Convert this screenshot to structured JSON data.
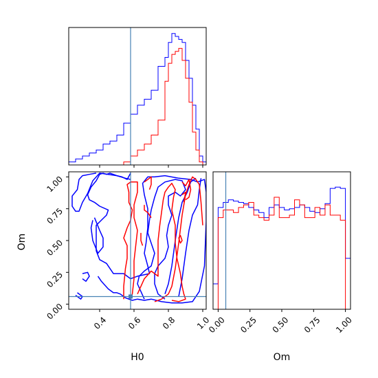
{
  "chart_data": {
    "type": "corner",
    "title": "",
    "parameters": [
      "H0",
      "Om"
    ],
    "truth": {
      "H0": 0.58,
      "Om": 0.06
    },
    "truth_color": "#4682b4",
    "series": [
      {
        "color": "#0000ff"
      },
      {
        "color": "#ff0000"
      }
    ],
    "h0_axis": {
      "range": [
        0.22,
        1.02
      ],
      "ticks": [
        0.4,
        0.6,
        0.8,
        1.0
      ],
      "tick_labels": [
        "0.4",
        "0.6",
        "0.8",
        "1.0"
      ],
      "label": "H0"
    },
    "om_axis": {
      "range": [
        -0.04,
        1.04
      ],
      "ticks": [
        0.0,
        0.25,
        0.5,
        0.75,
        1.0
      ],
      "tick_labels": [
        "0.00",
        "0.25",
        "0.50",
        "0.75",
        "1.00"
      ],
      "label": "Om"
    },
    "hist_h0": {
      "bin_edges": [
        0.22,
        0.26,
        0.3,
        0.34,
        0.38,
        0.42,
        0.46,
        0.5,
        0.54,
        0.58,
        0.62,
        0.66,
        0.7,
        0.74,
        0.78,
        0.8,
        0.82,
        0.84,
        0.86,
        0.88,
        0.9,
        0.92,
        0.94,
        0.96,
        0.98,
        1.0,
        1.02
      ],
      "blue": [
        2,
        4,
        6,
        8,
        10,
        14,
        16,
        20,
        28,
        34,
        40,
        44,
        50,
        66,
        72,
        82,
        88,
        86,
        84,
        82,
        70,
        58,
        40,
        24,
        6,
        2
      ],
      "red": [
        0,
        0,
        0,
        0,
        0,
        0,
        0,
        0,
        2,
        6,
        10,
        14,
        20,
        30,
        56,
        68,
        74,
        76,
        78,
        70,
        58,
        42,
        22,
        10,
        2,
        0
      ],
      "ymax": 92
    },
    "hist_om": {
      "bin_edges": [
        -0.04,
        0.0,
        0.04,
        0.08,
        0.12,
        0.16,
        0.2,
        0.24,
        0.28,
        0.32,
        0.36,
        0.4,
        0.44,
        0.48,
        0.52,
        0.56,
        0.6,
        0.64,
        0.68,
        0.72,
        0.76,
        0.8,
        0.84,
        0.88,
        0.92,
        0.96,
        1.0,
        1.04
      ],
      "blue": [
        0.2,
        0.8,
        0.84,
        0.86,
        0.85,
        0.84,
        0.83,
        0.8,
        0.78,
        0.76,
        0.72,
        0.8,
        0.82,
        0.8,
        0.78,
        0.79,
        0.8,
        0.82,
        0.8,
        0.77,
        0.76,
        0.79,
        0.83,
        0.95,
        0.96,
        0.95,
        0.4
      ],
      "red": [
        0.0,
        0.72,
        0.78,
        0.78,
        0.76,
        0.8,
        0.82,
        0.84,
        0.74,
        0.72,
        0.7,
        0.74,
        0.88,
        0.72,
        0.72,
        0.74,
        0.86,
        0.82,
        0.72,
        0.72,
        0.8,
        0.74,
        0.82,
        0.74,
        0.74,
        0.7,
        0.0
      ],
      "ymax": 1.08
    },
    "contours": [
      {
        "series": 0,
        "points": [
          [
            0.26,
            0.07
          ],
          [
            0.29,
            0.04
          ],
          [
            0.3,
            0.06
          ],
          [
            0.27,
            0.09
          ]
        ]
      },
      {
        "series": 0,
        "points": [
          [
            0.39,
            0.22
          ],
          [
            0.41,
            0.18
          ],
          [
            0.45,
            0.12
          ],
          [
            0.48,
            0.09
          ],
          [
            0.5,
            0.09
          ],
          [
            0.52,
            0.08
          ],
          [
            0.55,
            0.05
          ],
          [
            0.59,
            0.03
          ],
          [
            0.62,
            0.04
          ],
          [
            0.66,
            0.03
          ],
          [
            0.7,
            0.04
          ],
          [
            0.76,
            0.02
          ],
          [
            0.82,
            0.01
          ],
          [
            0.88,
            0.01
          ],
          [
            0.94,
            0.02
          ],
          [
            0.98,
            0.1
          ],
          [
            1.01,
            0.3
          ],
          [
            1.02,
            0.65
          ],
          [
            1.02,
            0.88
          ],
          [
            1.01,
            0.98
          ],
          [
            0.97,
            0.96
          ],
          [
            0.93,
            0.98
          ],
          [
            0.86,
            0.99
          ],
          [
            0.78,
            1.01
          ],
          [
            0.72,
            1.0
          ],
          [
            0.68,
            1.0
          ],
          [
            0.65,
            0.95
          ],
          [
            0.66,
            0.86
          ],
          [
            0.68,
            0.75
          ],
          [
            0.68,
            0.6
          ],
          [
            0.67,
            0.48
          ],
          [
            0.66,
            0.4
          ],
          [
            0.68,
            0.3
          ],
          [
            0.69,
            0.24
          ],
          [
            0.62,
            0.22
          ],
          [
            0.58,
            0.2
          ],
          [
            0.54,
            0.24
          ],
          [
            0.48,
            0.24
          ],
          [
            0.46,
            0.28
          ],
          [
            0.44,
            0.32
          ],
          [
            0.4,
            0.35
          ],
          [
            0.38,
            0.42
          ],
          [
            0.38,
            0.55
          ],
          [
            0.38,
            0.62
          ],
          [
            0.41,
            0.66
          ],
          [
            0.44,
            0.7
          ],
          [
            0.45,
            0.74
          ],
          [
            0.4,
            0.77
          ],
          [
            0.37,
            0.8
          ],
          [
            0.34,
            0.82
          ],
          [
            0.33,
            0.86
          ],
          [
            0.35,
            0.92
          ],
          [
            0.38,
            0.97
          ],
          [
            0.4,
            1.02
          ],
          [
            0.42,
            1.03
          ],
          [
            0.44,
            1.02
          ],
          [
            0.46,
            1.03
          ],
          [
            0.5,
            1.01
          ],
          [
            0.53,
            1.0
          ],
          [
            0.56,
            0.98
          ],
          [
            0.58,
            1.03
          ]
        ]
      },
      {
        "series": 0,
        "points": [
          [
            0.58,
            0.98
          ],
          [
            0.55,
            0.99
          ],
          [
            0.5,
            1.01
          ],
          [
            0.45,
            1.02
          ],
          [
            0.4,
            1.03
          ],
          [
            0.36,
            0.97
          ],
          [
            0.33,
            0.87
          ],
          [
            0.3,
            0.8
          ],
          [
            0.28,
            0.73
          ],
          [
            0.26,
            0.73
          ],
          [
            0.24,
            0.77
          ],
          [
            0.24,
            0.85
          ],
          [
            0.27,
            0.9
          ],
          [
            0.28,
            0.98
          ],
          [
            0.3,
            1.01
          ],
          [
            0.34,
            1.02
          ],
          [
            0.38,
            1.03
          ]
        ]
      },
      {
        "series": 0,
        "points": [
          [
            0.3,
            0.2
          ],
          [
            0.32,
            0.18
          ],
          [
            0.34,
            0.22
          ],
          [
            0.33,
            0.25
          ],
          [
            0.3,
            0.24
          ]
        ]
      },
      {
        "series": 0,
        "points": [
          [
            0.37,
            0.68
          ],
          [
            0.4,
            0.58
          ],
          [
            0.42,
            0.52
          ],
          [
            0.42,
            0.45
          ],
          [
            0.39,
            0.4
          ],
          [
            0.36,
            0.5
          ],
          [
            0.35,
            0.6
          ],
          [
            0.36,
            0.66
          ]
        ]
      },
      {
        "series": 0,
        "points": [
          [
            0.78,
            0.08
          ],
          [
            0.8,
            0.16
          ],
          [
            0.82,
            0.3
          ],
          [
            0.84,
            0.5
          ],
          [
            0.86,
            0.68
          ],
          [
            0.88,
            0.8
          ],
          [
            0.91,
            0.88
          ],
          [
            0.93,
            0.96
          ],
          [
            0.96,
            0.99
          ]
        ]
      },
      {
        "series": 0,
        "points": [
          [
            0.86,
            0.06
          ],
          [
            0.88,
            0.2
          ],
          [
            0.9,
            0.4
          ],
          [
            0.92,
            0.58
          ],
          [
            0.94,
            0.7
          ],
          [
            0.97,
            0.78
          ],
          [
            0.98,
            0.9
          ],
          [
            0.99,
            0.99
          ]
        ]
      },
      {
        "series": 0,
        "points": [
          [
            0.66,
            0.04
          ],
          [
            0.64,
            0.1
          ],
          [
            0.62,
            0.16
          ],
          [
            0.63,
            0.22
          ],
          [
            0.66,
            0.26
          ],
          [
            0.7,
            0.3
          ],
          [
            0.72,
            0.4
          ],
          [
            0.7,
            0.48
          ],
          [
            0.68,
            0.56
          ],
          [
            0.69,
            0.66
          ],
          [
            0.7,
            0.74
          ],
          [
            0.72,
            0.84
          ],
          [
            0.74,
            0.92
          ],
          [
            0.78,
            0.96
          ],
          [
            0.84,
            0.98
          ],
          [
            0.88,
            0.97
          ],
          [
            0.9,
            0.9
          ],
          [
            0.87,
            0.85
          ],
          [
            0.84,
            0.88
          ],
          [
            0.8,
            0.85
          ],
          [
            0.8,
            0.78
          ],
          [
            0.82,
            0.7
          ],
          [
            0.8,
            0.62
          ],
          [
            0.79,
            0.54
          ],
          [
            0.8,
            0.45
          ],
          [
            0.78,
            0.36
          ],
          [
            0.74,
            0.3
          ],
          [
            0.72,
            0.24
          ],
          [
            0.72,
            0.16
          ],
          [
            0.74,
            0.08
          ],
          [
            0.78,
            0.04
          ]
        ]
      },
      {
        "series": 1,
        "points": [
          [
            0.72,
            0.02
          ],
          [
            0.76,
            0.04
          ],
          [
            0.8,
            0.08
          ],
          [
            0.82,
            0.14
          ],
          [
            0.84,
            0.28
          ],
          [
            0.86,
            0.48
          ],
          [
            0.88,
            0.7
          ],
          [
            0.9,
            0.86
          ],
          [
            0.92,
            0.94
          ],
          [
            0.94,
            1.0
          ],
          [
            0.96,
            0.98
          ],
          [
            0.98,
            0.94
          ],
          [
            0.99,
            0.8
          ],
          [
            1.0,
            0.62
          ]
        ]
      },
      {
        "series": 1,
        "points": [
          [
            0.62,
            0.08
          ],
          [
            0.64,
            0.14
          ],
          [
            0.66,
            0.2
          ],
          [
            0.7,
            0.26
          ],
          [
            0.72,
            0.24
          ],
          [
            0.74,
            0.22
          ],
          [
            0.74,
            0.3
          ],
          [
            0.74,
            0.4
          ],
          [
            0.74,
            0.5
          ],
          [
            0.75,
            0.62
          ],
          [
            0.76,
            0.72
          ],
          [
            0.77,
            0.82
          ],
          [
            0.78,
            0.88
          ],
          [
            0.8,
            0.92
          ],
          [
            0.82,
            0.95
          ],
          [
            0.84,
            0.9
          ],
          [
            0.83,
            0.84
          ],
          [
            0.82,
            0.74
          ],
          [
            0.84,
            0.62
          ],
          [
            0.84,
            0.48
          ],
          [
            0.85,
            0.36
          ],
          [
            0.87,
            0.24
          ],
          [
            0.88,
            0.14
          ],
          [
            0.89,
            0.08
          ],
          [
            0.9,
            0.04
          ],
          [
            0.86,
            0.02
          ],
          [
            0.82,
            0.03
          ]
        ]
      },
      {
        "series": 1,
        "points": [
          [
            0.54,
            0.04
          ],
          [
            0.54,
            0.14
          ],
          [
            0.55,
            0.28
          ],
          [
            0.56,
            0.36
          ],
          [
            0.56,
            0.46
          ],
          [
            0.54,
            0.52
          ],
          [
            0.56,
            0.6
          ],
          [
            0.58,
            0.66
          ],
          [
            0.59,
            0.74
          ],
          [
            0.57,
            0.8
          ],
          [
            0.57,
            0.88
          ],
          [
            0.56,
            0.94
          ],
          [
            0.58,
            0.96
          ],
          [
            0.62,
            0.96
          ],
          [
            0.62,
            0.88
          ],
          [
            0.6,
            0.78
          ],
          [
            0.6,
            0.68
          ],
          [
            0.62,
            0.58
          ],
          [
            0.61,
            0.46
          ],
          [
            0.6,
            0.34
          ],
          [
            0.6,
            0.2
          ],
          [
            0.59,
            0.08
          ],
          [
            0.58,
            0.04
          ]
        ]
      },
      {
        "series": 1,
        "points": [
          [
            0.66,
            0.96
          ],
          [
            0.68,
            0.98
          ],
          [
            0.7,
            1.0
          ],
          [
            0.7,
            0.94
          ],
          [
            0.69,
            0.9
          ]
        ]
      },
      {
        "series": 1,
        "points": [
          [
            0.66,
            0.78
          ],
          [
            0.66,
            0.74
          ],
          [
            0.68,
            0.72
          ],
          [
            0.7,
            0.68
          ]
        ]
      },
      {
        "series": 1,
        "points": [
          [
            0.64,
            0.56
          ],
          [
            0.64,
            0.5
          ],
          [
            0.65,
            0.46
          ]
        ]
      },
      {
        "series": 1,
        "points": [
          [
            0.88,
            0.96
          ],
          [
            0.9,
            0.93
          ],
          [
            0.92,
            0.98
          ],
          [
            0.93,
            0.9
          ],
          [
            0.92,
            0.84
          ],
          [
            0.9,
            0.82
          ]
        ]
      },
      {
        "series": 1,
        "points": [
          [
            0.86,
            0.52
          ],
          [
            0.87,
            0.48
          ],
          [
            0.88,
            0.5
          ],
          [
            0.87,
            0.54
          ],
          [
            0.86,
            0.52
          ]
        ]
      },
      {
        "series": 1,
        "points": [
          [
            0.88,
            0.86
          ],
          [
            0.9,
            0.88
          ],
          [
            0.89,
            0.8
          ]
        ]
      }
    ]
  }
}
